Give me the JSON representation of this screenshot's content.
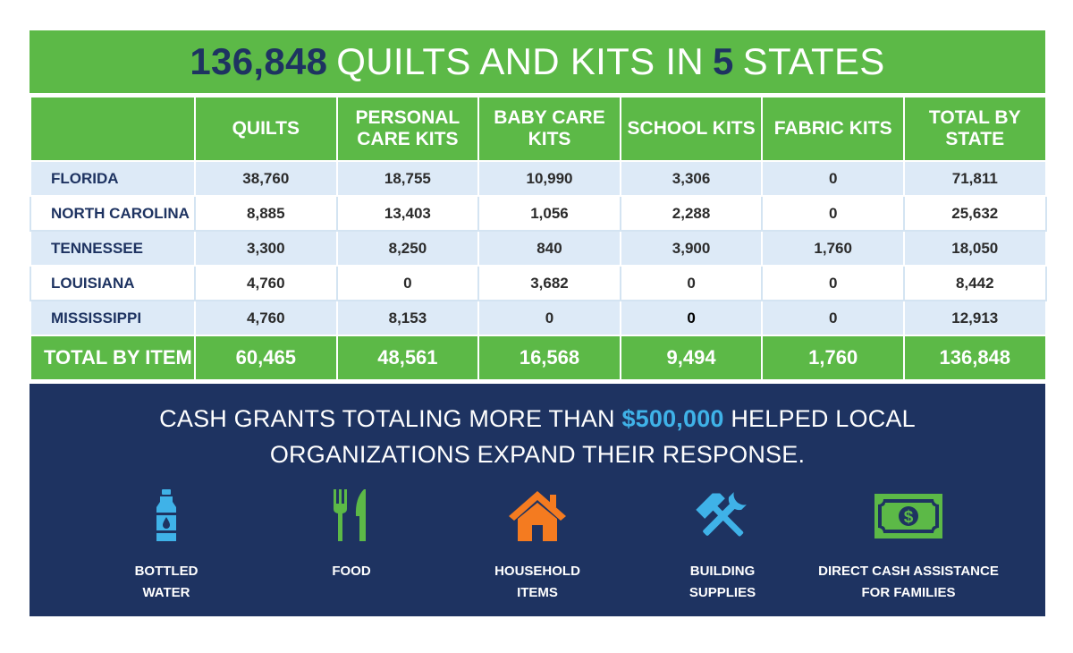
{
  "title": {
    "total": "136,848",
    "middle": "QUILTS AND KITS IN",
    "states_count": "5",
    "end": "STATES"
  },
  "chart_data": {
    "type": "table",
    "columns": [
      "",
      "QUILTS",
      "PERSONAL CARE KITS",
      "BABY CARE KITS",
      "SCHOOL KITS",
      "FABRIC KITS",
      "TOTAL BY STATE"
    ],
    "rows": [
      [
        "FLORIDA",
        "38,760",
        "18,755",
        "10,990",
        "3,306",
        "0",
        "71,811"
      ],
      [
        "NORTH CAROLINA",
        "8,885",
        "13,403",
        "1,056",
        "2,288",
        "0",
        "25,632"
      ],
      [
        "TENNESSEE",
        "3,300",
        "8,250",
        "840",
        "3,900",
        "1,760",
        "18,050"
      ],
      [
        "LOUISIANA",
        "4,760",
        "0",
        "3,682",
        "0",
        "0",
        "8,442"
      ],
      [
        "MISSISSIPPI",
        "4,760",
        "8,153",
        "0",
        "0",
        "0",
        "12,913"
      ]
    ],
    "totals": [
      "TOTAL BY ITEM",
      "60,465",
      "48,561",
      "16,568",
      "9,494",
      "1,760",
      "136,848"
    ]
  },
  "grants": {
    "line1_pre": "CASH GRANTS TOTALING MORE THAN",
    "amount": "$500,000",
    "line1_post": "HELPED LOCAL",
    "line2": "ORGANIZATIONS EXPAND THEIR RESPONSE.",
    "items": [
      {
        "label_1": "BOTTLED",
        "label_2": "WATER",
        "icon": "water-bottle-icon",
        "color": "#3fb2e8"
      },
      {
        "label_1": "FOOD",
        "label_2": "",
        "icon": "fork-knife-icon",
        "color": "#5cb947"
      },
      {
        "label_1": "HOUSEHOLD",
        "label_2": "ITEMS",
        "icon": "house-icon",
        "color": "#f47b20"
      },
      {
        "label_1": "BUILDING",
        "label_2": "SUPPLIES",
        "icon": "tools-icon",
        "color": "#3fb2e8"
      },
      {
        "label_1": "DIRECT CASH ASSISTANCE",
        "label_2": "FOR FAMILIES",
        "icon": "cash-icon",
        "color": "#5cb947"
      }
    ]
  },
  "colors": {
    "green": "#5cb947",
    "navy": "#1e3361",
    "light_blue_row": "#ddeaf7",
    "accent_blue": "#3fb2e8",
    "orange": "#f47b20"
  }
}
